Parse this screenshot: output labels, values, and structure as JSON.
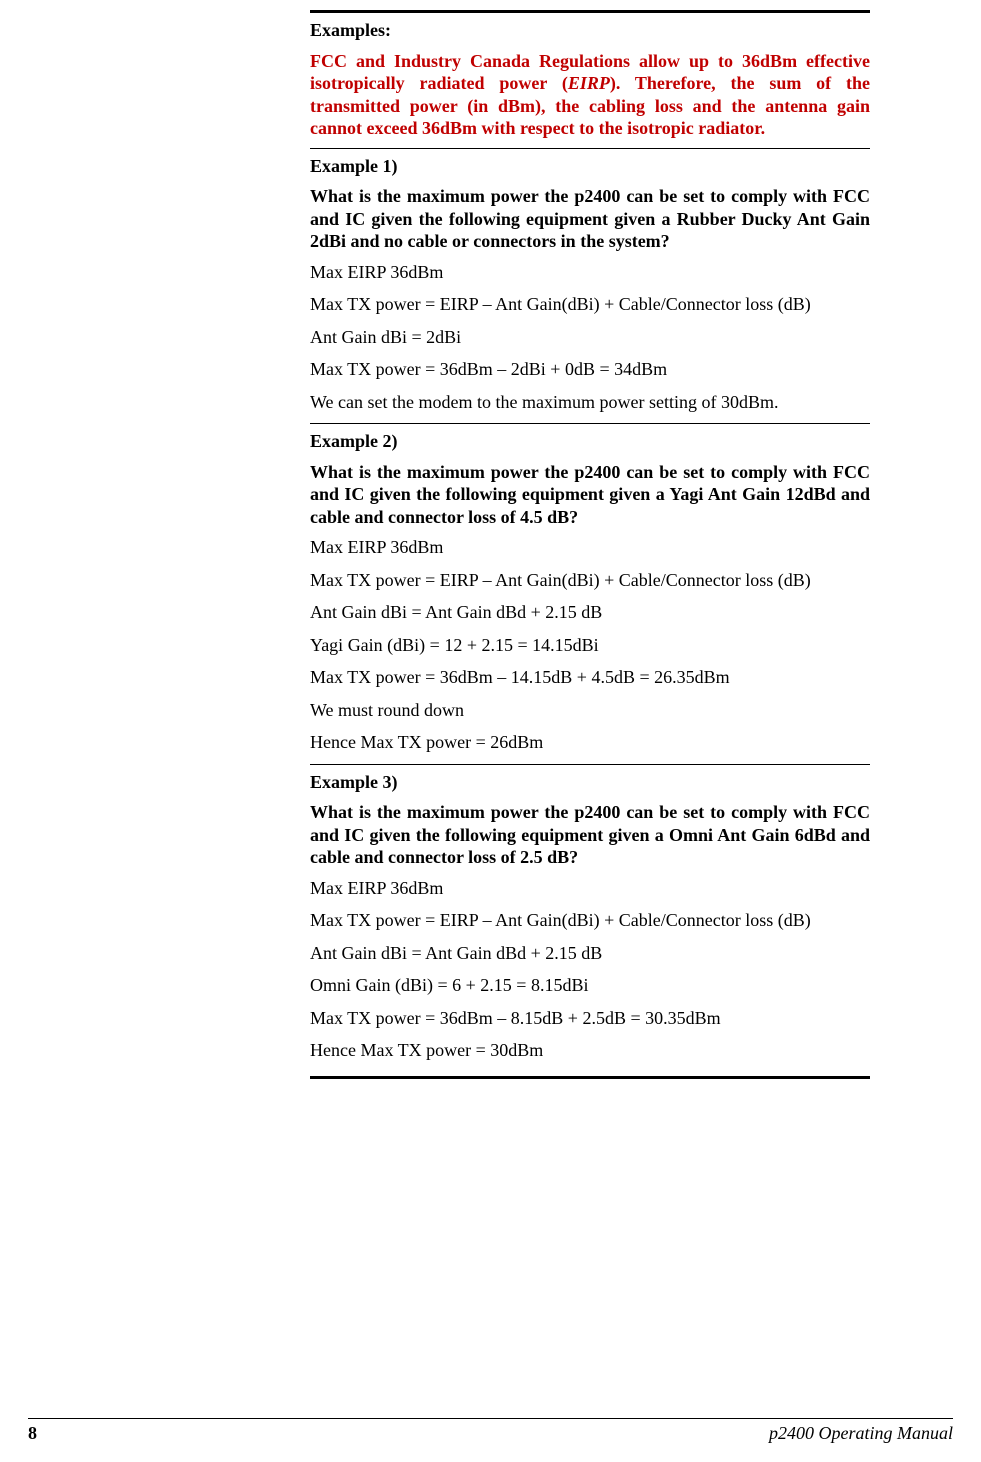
{
  "colors": {
    "red": "#c00000",
    "black": "#000000",
    "background": "#ffffff",
    "rule": "#000000"
  },
  "typography": {
    "family": "Times New Roman",
    "body_size_pt": 13,
    "bold_weight": 700,
    "line_height": 1.25
  },
  "header": {
    "examples_label": "Examples:",
    "red_notice_prefix": "FCC and Industry Canada Regulations allow up to 36dBm effective isotropically radiated power (",
    "red_notice_italic": "EIRP",
    "red_notice_suffix": ").  Therefore, the sum of the transmitted power (in dBm), the cabling loss and the antenna gain cannot exceed 36dBm with respect to the isotropic radiator."
  },
  "ex1": {
    "title": "Example 1)",
    "question": "What is the maximum power the p2400 can be set to comply with FCC and IC given the following equipment given a Rubber Ducky Ant Gain 2dBi and no cable or connectors in the system?",
    "l1": "Max EIRP 36dBm",
    "l2": "Max TX power = EIRP – Ant Gain(dBi) + Cable/Connector loss (dB)",
    "l3": "Ant Gain dBi = 2dBi",
    "l4": "Max TX power = 36dBm  – 2dBi  + 0dB = 34dBm",
    "l5": "We can set the modem to the maximum power setting of 30dBm."
  },
  "ex2": {
    "title": "Example 2)",
    "question": "What is the maximum power the p2400 can be set to comply with FCC and IC given the following equipment given a Yagi Ant Gain 12dBd and cable and connector loss of 4.5 dB?",
    "l1": "Max EIRP 36dBm",
    "l2": "Max TX power = EIRP – Ant Gain(dBi) + Cable/Connector loss (dB)",
    "l3": "Ant Gain dBi = Ant Gain dBd + 2.15  dB",
    "l4": "Yagi Gain (dBi) = 12 + 2.15 = 14.15dBi",
    "l5": "Max TX power = 36dBm  – 14.15dB  + 4.5dB = 26.35dBm",
    "l6": "We must round down",
    "l7": "Hence Max TX power = 26dBm"
  },
  "ex3": {
    "title": "Example 3)",
    "question": "What is the maximum power the p2400 can be set to comply with FCC and IC given the following equipment given a Omni Ant Gain 6dBd and cable and connector loss of 2.5 dB?",
    "l1": "Max EIRP 36dBm",
    "l2": "Max TX power = EIRP – Ant Gain(dBi) + Cable/Connector loss (dB)",
    "l3": "Ant Gain dBi = Ant Gain dBd + 2.15  dB",
    "l4": "Omni Gain (dBi) = 6 + 2.15 = 8.15dBi",
    "l5": "Max TX power = 36dBm  – 8.15dB  + 2.5dB = 30.35dBm",
    "l6": "Hence Max TX power = 30dBm"
  },
  "footer": {
    "page_number": "8",
    "doc_title": "p2400 Operating Manual"
  }
}
